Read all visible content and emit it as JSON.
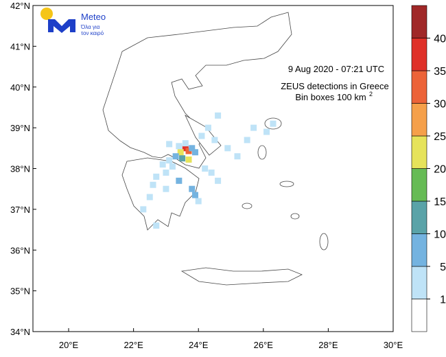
{
  "map": {
    "annotation": {
      "date": "9  Aug 2020 - 07:21 UTC",
      "title": "ZEUS detections in Greece",
      "bins_text": "Bin boxes 100 km",
      "bins_exp": "2"
    },
    "logo": {
      "name": "Meteo",
      "slogan1": "Όλα για",
      "slogan2": "τον καιρό"
    },
    "xlim": [
      18.9,
      30
    ],
    "ylim": [
      34,
      42
    ],
    "xticks": [
      {
        "value": 20,
        "label": "20°E"
      },
      {
        "value": 22,
        "label": "22°E"
      },
      {
        "value": 24,
        "label": "24°E"
      },
      {
        "value": 26,
        "label": "26°E"
      },
      {
        "value": 28,
        "label": "28°E"
      },
      {
        "value": 30,
        "label": "30°E"
      }
    ],
    "yticks": [
      {
        "value": 34,
        "label": "34°N"
      },
      {
        "value": 35,
        "label": "35°N"
      },
      {
        "value": 36,
        "label": "36°N"
      },
      {
        "value": 37,
        "label": "37°N"
      },
      {
        "value": 38,
        "label": "38°N"
      },
      {
        "value": 39,
        "label": "39°N"
      },
      {
        "value": 40,
        "label": "40°N"
      },
      {
        "value": 41,
        "label": "41°N"
      },
      {
        "value": 42,
        "label": "42°N"
      }
    ],
    "colorbar": {
      "levels": [
        1,
        5,
        10,
        15,
        20,
        25,
        30,
        35,
        40
      ],
      "colors": [
        "#ffffff",
        "#bfe3f7",
        "#74b3e0",
        "#5aa3a8",
        "#66bb55",
        "#e6e35a",
        "#f5a04a",
        "#ec6338",
        "#df3028",
        "#a02828"
      ]
    },
    "bins": [
      [
        23.6,
        38.5,
        37
      ],
      [
        23.7,
        38.43,
        32
      ],
      [
        23.45,
        38.4,
        22
      ],
      [
        23.7,
        38.22,
        21
      ],
      [
        23.5,
        38.25,
        12
      ],
      [
        23.8,
        38.5,
        8
      ],
      [
        23.9,
        38.4,
        6
      ],
      [
        23.6,
        38.62,
        4
      ],
      [
        23.4,
        38.55,
        3
      ],
      [
        23.3,
        38.3,
        7
      ],
      [
        23.1,
        38.2,
        3
      ],
      [
        22.9,
        38.1,
        2
      ],
      [
        23.2,
        38.05,
        4
      ],
      [
        23.0,
        37.9,
        3
      ],
      [
        22.7,
        37.8,
        2
      ],
      [
        22.6,
        37.6,
        3
      ],
      [
        23.0,
        37.5,
        2
      ],
      [
        23.4,
        37.7,
        6
      ],
      [
        23.8,
        37.5,
        7
      ],
      [
        23.9,
        37.35,
        8
      ],
      [
        24.0,
        37.2,
        3
      ],
      [
        24.2,
        38.0,
        2
      ],
      [
        24.4,
        37.9,
        3
      ],
      [
        24.6,
        37.7,
        2
      ],
      [
        24.1,
        38.8,
        3
      ],
      [
        24.3,
        39.0,
        2
      ],
      [
        24.5,
        38.7,
        3
      ],
      [
        24.6,
        39.3,
        2
      ],
      [
        24.9,
        38.5,
        2
      ],
      [
        25.2,
        38.3,
        3
      ],
      [
        25.5,
        38.7,
        2
      ],
      [
        25.7,
        39.0,
        3
      ],
      [
        26.3,
        39.1,
        4
      ],
      [
        26.1,
        38.9,
        2
      ],
      [
        22.5,
        37.3,
        2
      ],
      [
        22.3,
        37.0,
        3
      ],
      [
        22.7,
        36.6,
        2
      ],
      [
        23.1,
        38.6,
        2
      ]
    ]
  }
}
